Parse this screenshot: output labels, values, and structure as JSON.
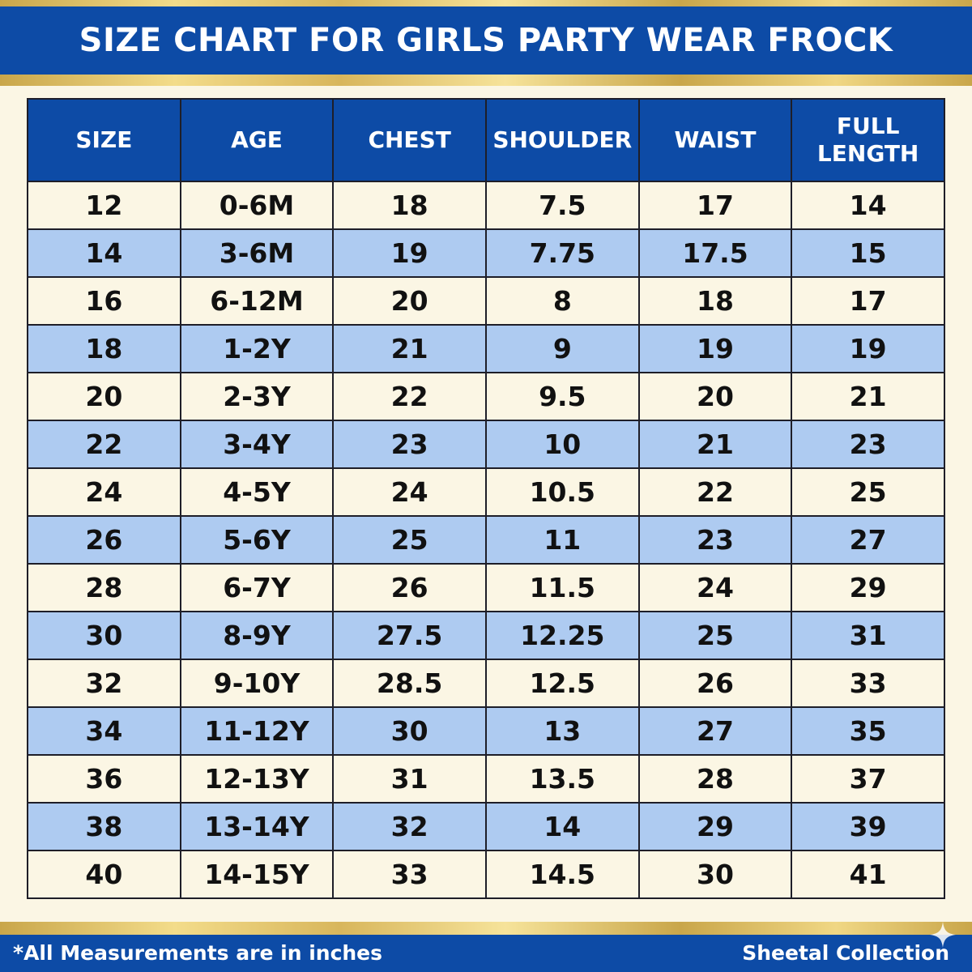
{
  "title": "SIZE CHART FOR GIRLS PARTY WEAR FROCK",
  "columns": [
    "SIZE",
    "AGE",
    "CHEST",
    "SHOULDER",
    "WAIST",
    "FULL\nLENGTH"
  ],
  "rows": [
    [
      "12",
      "0-6M",
      "18",
      "7.5",
      "17",
      "14"
    ],
    [
      "14",
      "3-6M",
      "19",
      "7.75",
      "17.5",
      "15"
    ],
    [
      "16",
      "6-12M",
      "20",
      "8",
      "18",
      "17"
    ],
    [
      "18",
      "1-2Y",
      "21",
      "9",
      "19",
      "19"
    ],
    [
      "20",
      "2-3Y",
      "22",
      "9.5",
      "20",
      "21"
    ],
    [
      "22",
      "3-4Y",
      "23",
      "10",
      "21",
      "23"
    ],
    [
      "24",
      "4-5Y",
      "24",
      "10.5",
      "22",
      "25"
    ],
    [
      "26",
      "5-6Y",
      "25",
      "11",
      "23",
      "27"
    ],
    [
      "28",
      "6-7Y",
      "26",
      "11.5",
      "24",
      "29"
    ],
    [
      "30",
      "8-9Y",
      "27.5",
      "12.25",
      "25",
      "31"
    ],
    [
      "32",
      "9-10Y",
      "28.5",
      "12.5",
      "26",
      "33"
    ],
    [
      "34",
      "11-12Y",
      "30",
      "13",
      "27",
      "35"
    ],
    [
      "36",
      "12-13Y",
      "31",
      "13.5",
      "28",
      "37"
    ],
    [
      "38",
      "13-14Y",
      "32",
      "14",
      "29",
      "39"
    ],
    [
      "40",
      "14-15Y",
      "33",
      "14.5",
      "30",
      "41"
    ]
  ],
  "footer": {
    "note": "*All Measurements are in inches",
    "brand": "Sheetal Collection"
  },
  "icons": {
    "corner": "sparkle-icon"
  },
  "colors": {
    "header_blue": "#0d4ba6",
    "row_blue": "#aecbf1",
    "row_cream": "#fbf6e4",
    "gold": "#d8b65c"
  }
}
